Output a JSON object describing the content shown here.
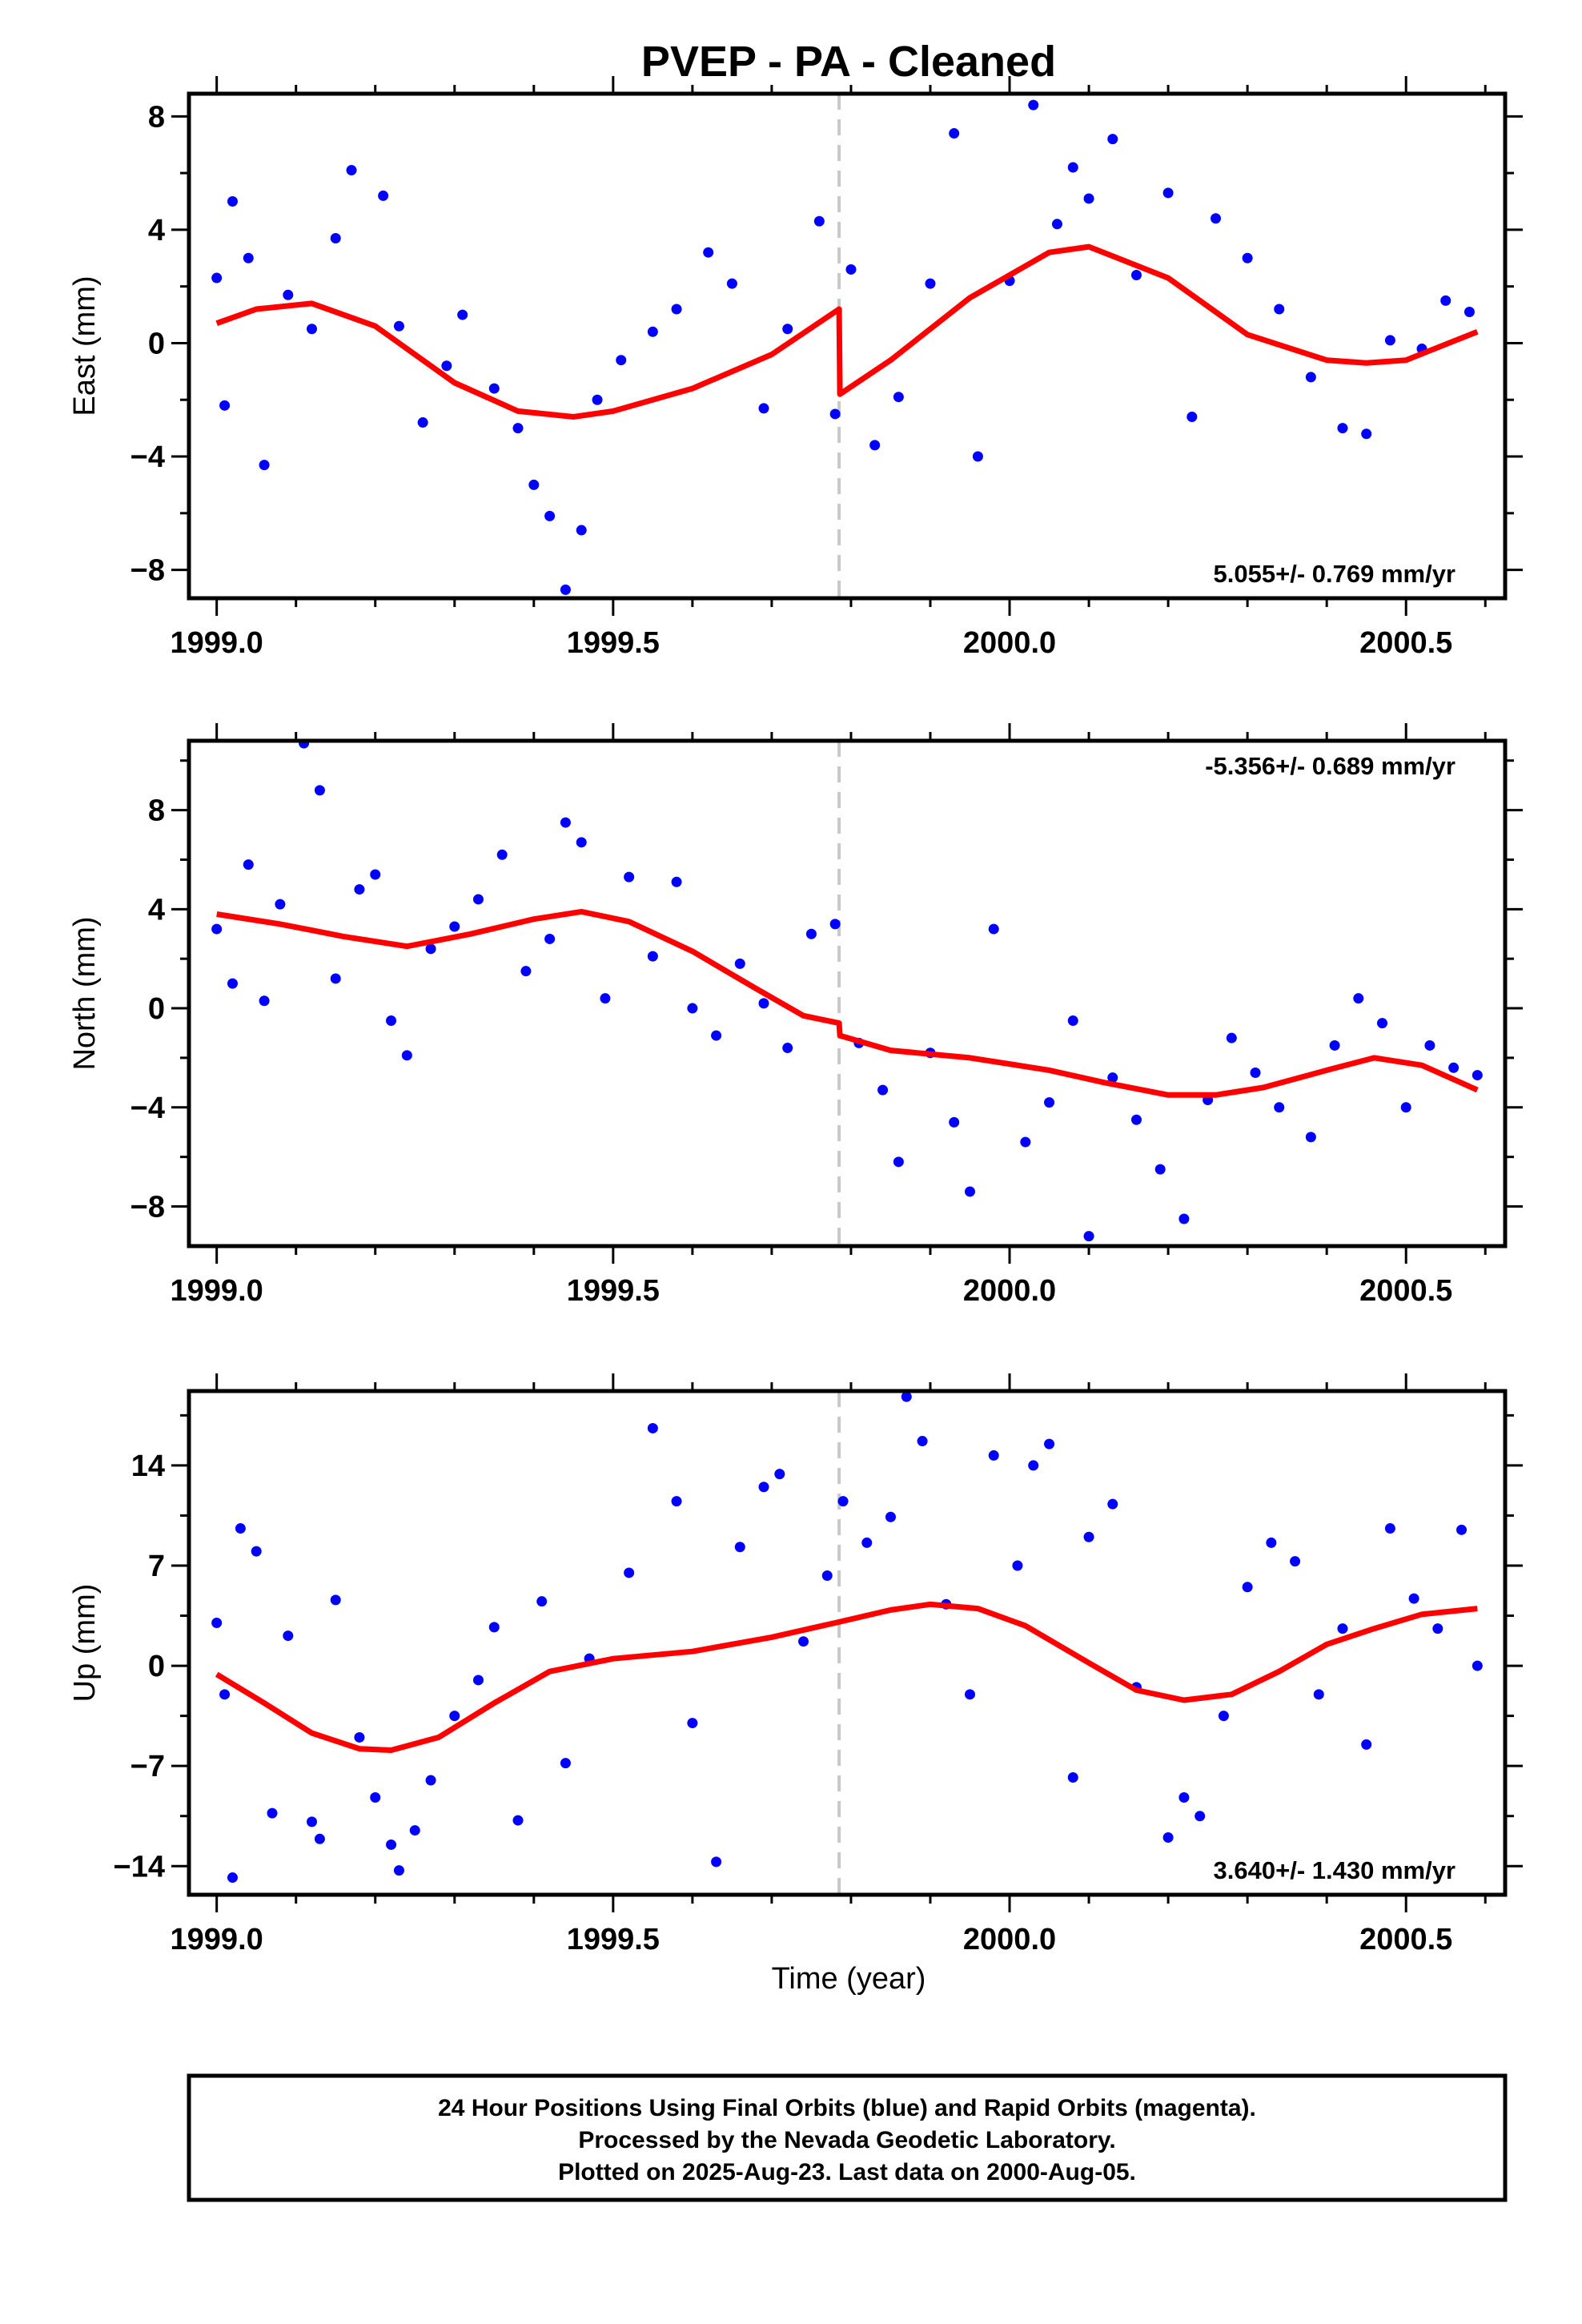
{
  "title": "PVEP  - PA - Cleaned",
  "xlabel": "Time (year)",
  "caption": [
    "24 Hour Positions Using Final Orbits (blue) and Rapid Orbits (magenta).",
    "Processed by the Nevada Geodetic Laboratory.",
    "Plotted on 2025-Aug-23. Last data on 2000-Aug-05."
  ],
  "colors": {
    "points": "#0000ff",
    "model": "#ff0000",
    "break_line": "#c8c8c8",
    "frame": "#000000"
  },
  "chart_data": [
    {
      "type": "scatter",
      "component": "east",
      "ylabel": "East (mm)",
      "rate_text": "5.055+/- 0.769 mm/yr",
      "rate_position": "bottom-right",
      "xlim": [
        1998.965,
        2000.625
      ],
      "ylim": [
        -9.0,
        8.8
      ],
      "xticks": [
        1999.0,
        1999.5,
        2000.0,
        2000.5
      ],
      "xtick_labels": [
        "1999.0",
        "1999.5",
        "2000.0",
        "2000.5"
      ],
      "yticks": [
        -8,
        -4,
        0,
        4,
        8
      ],
      "ytick_labels": [
        "−8",
        "−4",
        "0",
        "4",
        "8"
      ],
      "break_epoch": 1999.785,
      "series": [
        {
          "role": "model",
          "x": [
            1999.0,
            1999.05,
            1999.12,
            1999.2,
            1999.3,
            1999.38,
            1999.45,
            1999.5,
            1999.6,
            1999.7,
            1999.785,
            1999.786,
            1999.85,
            1999.95,
            2000.05,
            2000.1,
            2000.2,
            2000.3,
            2000.4,
            2000.45,
            2000.5,
            2000.59
          ],
          "y": [
            0.7,
            1.2,
            1.4,
            0.6,
            -1.4,
            -2.4,
            -2.6,
            -2.4,
            -1.6,
            -0.4,
            1.2,
            -1.8,
            -0.6,
            1.6,
            3.2,
            3.4,
            2.3,
            0.3,
            -0.6,
            -0.7,
            -0.6,
            0.4
          ]
        },
        {
          "role": "observations",
          "x": [
            1999.0,
            1999.01,
            1999.02,
            1999.04,
            1999.06,
            1999.09,
            1999.12,
            1999.15,
            1999.17,
            1999.21,
            1999.23,
            1999.26,
            1999.29,
            1999.31,
            1999.35,
            1999.38,
            1999.4,
            1999.42,
            1999.44,
            1999.46,
            1999.48,
            1999.51,
            1999.55,
            1999.58,
            1999.62,
            1999.65,
            1999.69,
            1999.72,
            1999.76,
            1999.78,
            1999.8,
            1999.83,
            1999.86,
            1999.9,
            1999.93,
            1999.96,
            2000.0,
            2000.03,
            2000.06,
            2000.08,
            2000.1,
            2000.13,
            2000.16,
            2000.2,
            2000.23,
            2000.26,
            2000.3,
            2000.34,
            2000.38,
            2000.42,
            2000.45,
            2000.48,
            2000.52,
            2000.55,
            2000.58
          ],
          "y": [
            2.3,
            -2.2,
            5.0,
            3.0,
            -4.3,
            1.7,
            0.5,
            3.7,
            6.1,
            5.2,
            0.6,
            -2.8,
            -0.8,
            1.0,
            -1.6,
            -3.0,
            -5.0,
            -6.1,
            -8.7,
            -6.6,
            -2.0,
            -0.6,
            0.4,
            1.2,
            3.2,
            2.1,
            -2.3,
            0.5,
            4.3,
            -2.5,
            2.6,
            -3.6,
            -1.9,
            2.1,
            7.4,
            -4.0,
            2.2,
            8.4,
            4.2,
            6.2,
            5.1,
            7.2,
            2.4,
            5.3,
            -2.6,
            4.4,
            3.0,
            1.2,
            -1.2,
            -3.0,
            -3.2,
            0.1,
            -0.2,
            1.5,
            1.1
          ]
        }
      ]
    },
    {
      "type": "scatter",
      "component": "north",
      "ylabel": "North (mm)",
      "rate_text": "-5.356+/- 0.689 mm/yr",
      "rate_position": "top-right",
      "xlim": [
        1998.965,
        2000.625
      ],
      "ylim": [
        -9.6,
        10.8
      ],
      "xticks": [
        1999.0,
        1999.5,
        2000.0,
        2000.5
      ],
      "xtick_labels": [
        "1999.0",
        "1999.5",
        "2000.0",
        "2000.5"
      ],
      "yticks": [
        -8,
        -4,
        0,
        4,
        8
      ],
      "ytick_labels": [
        "−8",
        "−4",
        "0",
        "4",
        "8"
      ],
      "break_epoch": 1999.785,
      "series": [
        {
          "role": "model",
          "x": [
            1999.0,
            1999.08,
            1999.16,
            1999.24,
            1999.32,
            1999.4,
            1999.46,
            1999.52,
            1999.6,
            1999.68,
            1999.74,
            1999.785,
            1999.786,
            1999.85,
            1999.95,
            2000.05,
            2000.12,
            2000.2,
            2000.26,
            2000.32,
            2000.4,
            2000.46,
            2000.52,
            2000.59
          ],
          "y": [
            3.8,
            3.4,
            2.9,
            2.5,
            3.0,
            3.6,
            3.9,
            3.5,
            2.3,
            0.8,
            -0.3,
            -0.6,
            -1.1,
            -1.7,
            -2.0,
            -2.5,
            -3.0,
            -3.5,
            -3.5,
            -3.2,
            -2.5,
            -2.0,
            -2.3,
            -3.3
          ]
        },
        {
          "role": "observations",
          "x": [
            1999.0,
            1999.02,
            1999.04,
            1999.06,
            1999.08,
            1999.11,
            1999.13,
            1999.15,
            1999.18,
            1999.2,
            1999.22,
            1999.24,
            1999.27,
            1999.3,
            1999.33,
            1999.36,
            1999.39,
            1999.42,
            1999.44,
            1999.46,
            1999.49,
            1999.52,
            1999.55,
            1999.58,
            1999.6,
            1999.63,
            1999.66,
            1999.69,
            1999.72,
            1999.75,
            1999.78,
            1999.81,
            1999.84,
            1999.86,
            1999.9,
            1999.93,
            1999.95,
            1999.98,
            2000.02,
            2000.05,
            2000.08,
            2000.1,
            2000.13,
            2000.16,
            2000.19,
            2000.22,
            2000.25,
            2000.28,
            2000.31,
            2000.34,
            2000.38,
            2000.41,
            2000.44,
            2000.47,
            2000.5,
            2000.53,
            2000.56,
            2000.59
          ],
          "y": [
            3.2,
            1.0,
            5.8,
            0.3,
            4.2,
            10.7,
            8.8,
            1.2,
            4.8,
            5.4,
            -0.5,
            -1.9,
            2.4,
            3.3,
            4.4,
            6.2,
            1.5,
            2.8,
            7.5,
            6.7,
            0.4,
            5.3,
            2.1,
            5.1,
            0.0,
            -1.1,
            1.8,
            0.2,
            -1.6,
            3.0,
            3.4,
            -1.4,
            -3.3,
            -6.2,
            -1.8,
            -4.6,
            -7.4,
            3.2,
            -5.4,
            -3.8,
            -0.5,
            -9.2,
            -2.8,
            -4.5,
            -6.5,
            -8.5,
            -3.7,
            -1.2,
            -2.6,
            -4.0,
            -5.2,
            -1.5,
            0.4,
            -0.6,
            -4.0,
            -1.5,
            -2.4,
            -2.7
          ]
        }
      ]
    },
    {
      "type": "scatter",
      "component": "up",
      "ylabel": "Up (mm)",
      "rate_text": "3.640+/- 1.430 mm/yr",
      "rate_position": "bottom-right",
      "xlim": [
        1998.965,
        2000.625
      ],
      "ylim": [
        -16.0,
        19.2
      ],
      "xticks": [
        1999.0,
        1999.5,
        2000.0,
        2000.5
      ],
      "xtick_labels": [
        "1999.0",
        "1999.5",
        "2000.0",
        "2000.5"
      ],
      "yticks": [
        -14,
        -7,
        0,
        7,
        14
      ],
      "ytick_labels": [
        "−14",
        "−7",
        "0",
        "7",
        "14"
      ],
      "break_epoch": 1999.785,
      "series": [
        {
          "role": "model",
          "x": [
            1999.0,
            1999.06,
            1999.12,
            1999.18,
            1999.22,
            1999.28,
            1999.35,
            1999.42,
            1999.5,
            1999.6,
            1999.7,
            1999.78,
            1999.85,
            1999.9,
            1999.96,
            2000.02,
            2000.1,
            2000.16,
            2000.22,
            2000.28,
            2000.34,
            2000.4,
            2000.46,
            2000.52,
            2000.59
          ],
          "y": [
            -0.6,
            -2.6,
            -4.7,
            -5.8,
            -5.9,
            -5.0,
            -2.6,
            -0.4,
            0.5,
            1.0,
            2.0,
            3.0,
            3.9,
            4.3,
            4.0,
            2.8,
            0.2,
            -1.7,
            -2.4,
            -2.0,
            -0.4,
            1.5,
            2.6,
            3.6,
            4.0
          ]
        },
        {
          "role": "observations",
          "x": [
            1999.0,
            1999.01,
            1999.02,
            1999.03,
            1999.05,
            1999.07,
            1999.09,
            1999.12,
            1999.13,
            1999.15,
            1999.18,
            1999.2,
            1999.22,
            1999.23,
            1999.25,
            1999.27,
            1999.3,
            1999.33,
            1999.35,
            1999.38,
            1999.41,
            1999.44,
            1999.47,
            1999.52,
            1999.55,
            1999.58,
            1999.6,
            1999.63,
            1999.66,
            1999.69,
            1999.71,
            1999.74,
            1999.77,
            1999.79,
            1999.82,
            1999.85,
            1999.87,
            1999.89,
            1999.92,
            1999.95,
            1999.98,
            2000.01,
            2000.03,
            2000.05,
            2000.08,
            2000.1,
            2000.13,
            2000.16,
            2000.2,
            2000.22,
            2000.24,
            2000.27,
            2000.3,
            2000.33,
            2000.36,
            2000.39,
            2000.42,
            2000.45,
            2000.48,
            2000.51,
            2000.54,
            2000.57,
            2000.59
          ],
          "y": [
            3.0,
            -2.0,
            -14.8,
            9.6,
            8.0,
            -10.3,
            2.1,
            -10.9,
            -12.1,
            4.6,
            -5.0,
            -9.2,
            -12.5,
            -14.3,
            -11.5,
            -8.0,
            -3.5,
            -1.0,
            2.7,
            -10.8,
            4.5,
            -6.8,
            0.5,
            6.5,
            16.6,
            11.5,
            -4.0,
            -13.7,
            8.3,
            12.5,
            13.4,
            1.7,
            6.3,
            11.5,
            8.6,
            10.4,
            18.8,
            15.7,
            4.3,
            -2.0,
            14.7,
            7.0,
            14.0,
            15.5,
            -7.8,
            9.0,
            11.3,
            -1.5,
            -12.0,
            -9.2,
            -10.5,
            -3.5,
            5.5,
            8.6,
            7.3,
            -2.0,
            2.6,
            -5.5,
            9.6,
            4.7,
            2.6,
            9.5,
            0.0
          ]
        }
      ]
    }
  ]
}
